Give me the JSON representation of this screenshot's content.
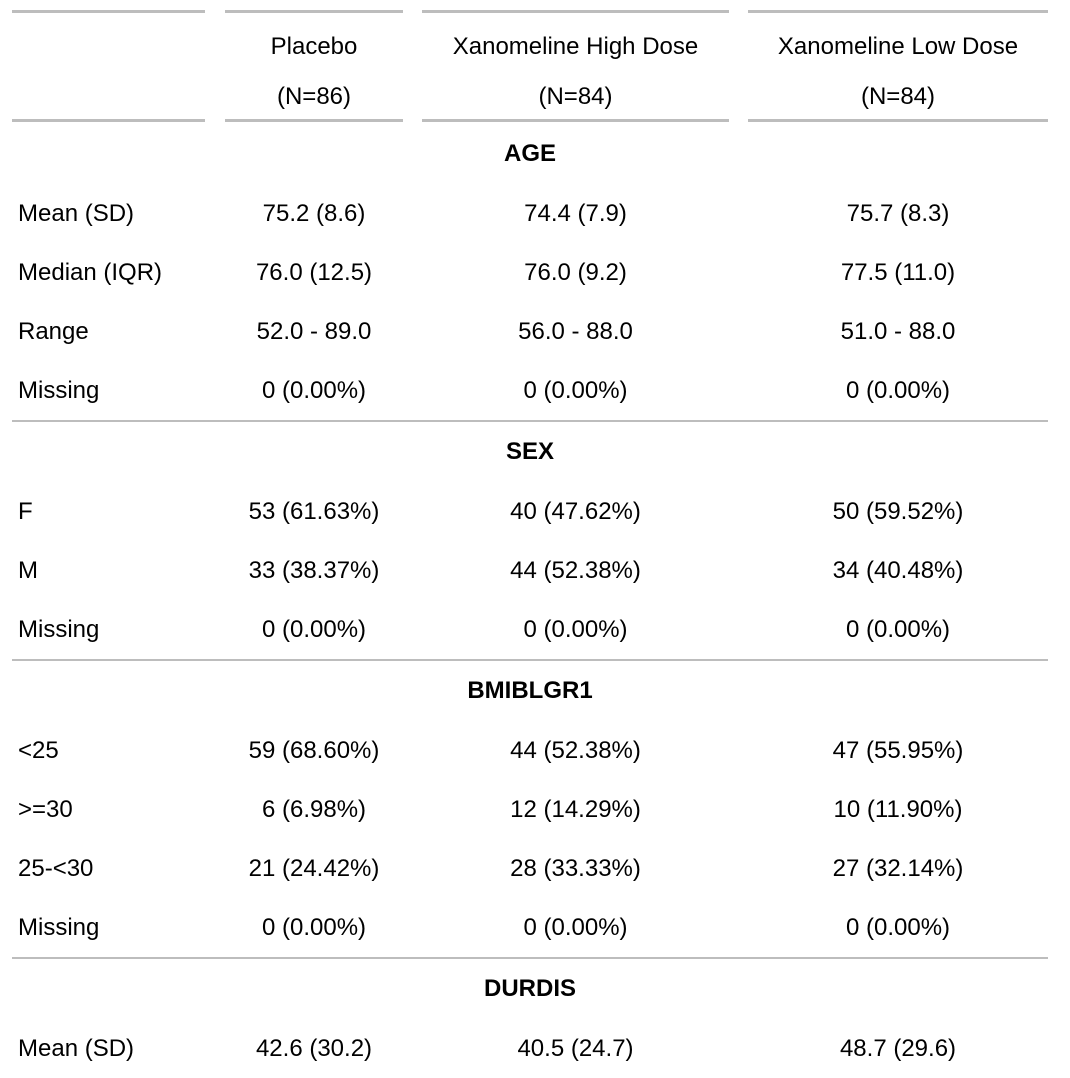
{
  "table": {
    "columns": [
      {
        "name": "Placebo",
        "n": "(N=86)"
      },
      {
        "name": "Xanomeline High Dose",
        "n": "(N=84)"
      },
      {
        "name": "Xanomeline Low Dose",
        "n": "(N=84)"
      }
    ],
    "groups": [
      {
        "title": "AGE",
        "rows": [
          {
            "label": "Mean (SD)",
            "values": [
              "75.2 (8.6)",
              "74.4 (7.9)",
              "75.7 (8.3)"
            ]
          },
          {
            "label": "Median (IQR)",
            "values": [
              "76.0 (12.5)",
              "76.0 (9.2)",
              "77.5 (11.0)"
            ]
          },
          {
            "label": "Range",
            "values": [
              "52.0 - 89.0",
              "56.0 - 88.0",
              "51.0 - 88.0"
            ]
          },
          {
            "label": "Missing",
            "values": [
              "0 (0.00%)",
              "0 (0.00%)",
              "0 (0.00%)"
            ]
          }
        ]
      },
      {
        "title": "SEX",
        "rows": [
          {
            "label": "F",
            "values": [
              "53 (61.63%)",
              "40 (47.62%)",
              "50 (59.52%)"
            ]
          },
          {
            "label": "M",
            "values": [
              "33 (38.37%)",
              "44 (52.38%)",
              "34 (40.48%)"
            ]
          },
          {
            "label": "Missing",
            "values": [
              "0 (0.00%)",
              "0 (0.00%)",
              "0 (0.00%)"
            ]
          }
        ]
      },
      {
        "title": "BMIBLGR1",
        "rows": [
          {
            "label": "<25",
            "values": [
              "59 (68.60%)",
              "44 (52.38%)",
              "47 (55.95%)"
            ]
          },
          {
            "label": ">=30",
            "values": [
              "6 (6.98%)",
              "12 (14.29%)",
              "10 (11.90%)"
            ]
          },
          {
            "label": "25-<30",
            "values": [
              "21 (24.42%)",
              "28 (33.33%)",
              "27 (32.14%)"
            ]
          },
          {
            "label": "Missing",
            "values": [
              "0 (0.00%)",
              "0 (0.00%)",
              "0 (0.00%)"
            ]
          }
        ]
      },
      {
        "title": "DURDIS",
        "rows": [
          {
            "label": "Mean (SD)",
            "values": [
              "42.6 (30.2)",
              "40.5 (24.7)",
              "48.7 (29.6)"
            ]
          }
        ]
      }
    ]
  }
}
